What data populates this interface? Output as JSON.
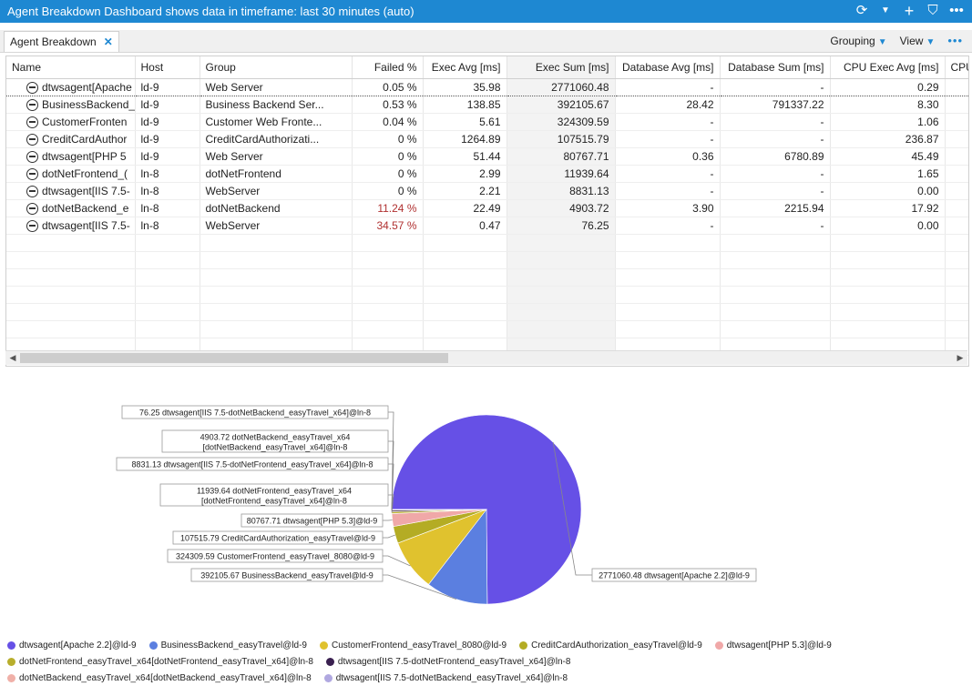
{
  "window": {
    "title": "Agent Breakdown Dashboard shows data in timeframe: last 30 minutes (auto)",
    "icons": [
      "refresh-icon",
      "chevron-down-icon",
      "plus-icon",
      "filter-icon",
      "more-icon"
    ]
  },
  "tab": {
    "label": "Agent Breakdown",
    "close": "✕"
  },
  "toolbar": {
    "grouping_label": "Grouping",
    "view_label": "View",
    "more": "•••"
  },
  "table": {
    "columns": [
      "Name",
      "Host",
      "Group",
      "Failed %",
      "Exec Avg [ms]",
      "Exec Sum [ms]",
      "Database Avg [ms]",
      "Database Sum [ms]",
      "CPU Exec Avg [ms]",
      "CPU Ex"
    ],
    "rows": [
      [
        "dtwsagent[Apache 2.2]@ld-9",
        "ld-9",
        "Web Server",
        "0.05 %",
        "35.98",
        "2771060.48",
        "-",
        "-",
        "0.29",
        ""
      ],
      [
        "BusinessBackend_easyTravel@ld-9",
        "ld-9",
        "Business Backend Ser...",
        "0.53 %",
        "138.85",
        "392105.67",
        "28.42",
        "791337.22",
        "8.30",
        ""
      ],
      [
        "CustomerFrontend_easyTravel_8080@ld-9",
        "ld-9",
        "Customer Web Fronte...",
        "0.04 %",
        "5.61",
        "324309.59",
        "-",
        "-",
        "1.06",
        ""
      ],
      [
        "CreditCardAuthorization_easyTravel@ld-9",
        "ld-9",
        "CreditCardAuthorizati...",
        "0 %",
        "1264.89",
        "107515.79",
        "-",
        "-",
        "236.87",
        ""
      ],
      [
        "dtwsagent[PHP 5.3]@ld-9",
        "ld-9",
        "Web Server",
        "0 %",
        "51.44",
        "80767.71",
        "0.36",
        "6780.89",
        "45.49",
        ""
      ],
      [
        "dotNetFrontend_easyTravel_x64",
        "ln-8",
        "dotNetFrontend",
        "0 %",
        "2.99",
        "11939.64",
        "-",
        "-",
        "1.65",
        ""
      ],
      [
        "dtwsagent[IIS 7.5-dotNetFrontend_easyTravel_x64]@ln-8",
        "ln-8",
        "WebServer",
        "0 %",
        "2.21",
        "8831.13",
        "-",
        "-",
        "0.00",
        ""
      ],
      [
        "dotNetBackend_easyTravel_x64",
        "ln-8",
        "dotNetBackend",
        "11.24 %",
        "22.49",
        "4903.72",
        "3.90",
        "2215.94",
        "17.92",
        ""
      ],
      [
        "dtwsagent[IIS 7.5-dotNetBackend_easyTravel_x64]@ln-8",
        "ln-8",
        "WebServer",
        "34.57 %",
        "0.47",
        "76.25",
        "-",
        "-",
        "0.00",
        ""
      ]
    ],
    "name_display": [
      "dtwsagent[Apache",
      "BusinessBackend_",
      "CustomerFronten",
      "CreditCardAuthor",
      "dtwsagent[PHP 5",
      "dotNetFrontend_(",
      "dtwsagent[IIS 7.5-",
      "dotNetBackend_e",
      "dtwsagent[IIS 7.5-"
    ],
    "failed_red_threshold": 10,
    "failed_red_color": "#b03030",
    "empty_rows": 7
  },
  "chart_data": {
    "type": "pie",
    "categories": [
      "dtwsagent[Apache 2.2]@ld-9",
      "BusinessBackend_easyTravel@ld-9",
      "CustomerFrontend_easyTravel_8080@ld-9",
      "CreditCardAuthorization_easyTravel@ld-9",
      "dtwsagent[PHP 5.3]@ld-9",
      "dotNetFrontend_easyTravel_x64[dotNetFrontend_easyTravel_x64]@ln-8",
      "dtwsagent[IIS 7.5-dotNetFrontend_easyTravel_x64]@ln-8",
      "dotNetBackend_easyTravel_x64[dotNetBackend_easyTravel_x64]@ln-8",
      "dtwsagent[IIS 7.5-dotNetBackend_easyTravel_x64]@ln-8"
    ],
    "values": [
      2771060.48,
      392105.67,
      324309.59,
      107515.79,
      80767.71,
      11939.64,
      8831.13,
      4903.72,
      76.25
    ],
    "colors": [
      "#6650e6",
      "#5b7fe0",
      "#e0c22e",
      "#b4ac24",
      "#f0a8a8",
      "#b8ae2c",
      "#3a2050",
      "#f0b0a8",
      "#b0a8e0"
    ],
    "callout_labels": [
      [
        "2771060.48 dtwsagent[Apache 2.2]@ld-9"
      ],
      [
        "392105.67 BusinessBackend_easyTravel@ld-9"
      ],
      [
        "324309.59 CustomerFrontend_easyTravel_8080@ld-9"
      ],
      [
        "107515.79 CreditCardAuthorization_easyTravel@ld-9"
      ],
      [
        "80767.71 dtwsagent[PHP 5.3]@ld-9"
      ],
      [
        "11939.64 dotNetFrontend_easyTravel_x64",
        "[dotNetFrontend_easyTravel_x64]@ln-8"
      ],
      [
        "8831.13 dtwsagent[IIS 7.5-dotNetFrontend_easyTravel_x64]@ln-8"
      ],
      [
        "4903.72 dotNetBackend_easyTravel_x64",
        "[dotNetBackend_easyTravel_x64]@ln-8"
      ],
      [
        "76.25 dtwsagent[IIS 7.5-dotNetBackend_easyTravel_x64]@ln-8"
      ]
    ],
    "legend_rows": [
      [
        0,
        1,
        2,
        3,
        4
      ],
      [
        5,
        6
      ],
      [
        7,
        8
      ]
    ],
    "legend": "bottom"
  }
}
